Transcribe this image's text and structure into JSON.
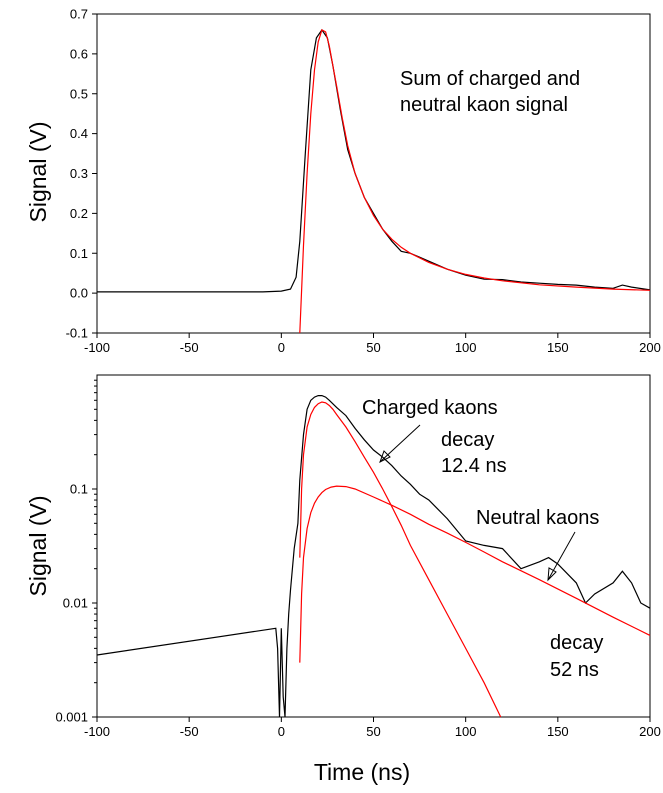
{
  "chart_data": [
    {
      "type": "line",
      "xlabel": "",
      "ylabel": "Signal (V)",
      "xlim": [
        -100,
        200
      ],
      "ylim": [
        -0.1,
        0.7
      ],
      "yscale": "linear",
      "x_ticks": [
        "-100",
        "-50",
        "0",
        "50",
        "100",
        "150",
        "200"
      ],
      "y_ticks": [
        "-0.1",
        "0.0",
        "0.1",
        "0.2",
        "0.3",
        "0.4",
        "0.5",
        "0.6",
        "0.7"
      ],
      "annotations": [
        "Sum of charged and",
        "neutral kaon signal"
      ],
      "series": [
        {
          "color": "#000000",
          "x": [
            -100,
            -50,
            -10,
            0,
            5,
            8,
            10,
            13,
            16,
            19,
            22,
            25,
            28,
            32,
            36,
            40,
            45,
            50,
            55,
            60,
            65,
            70,
            75,
            80,
            90,
            100,
            110,
            120,
            130,
            140,
            150,
            160,
            170,
            180,
            185,
            190,
            200
          ],
          "y": [
            0.003,
            0.003,
            0.003,
            0.005,
            0.01,
            0.04,
            0.13,
            0.35,
            0.56,
            0.64,
            0.66,
            0.64,
            0.57,
            0.46,
            0.36,
            0.3,
            0.24,
            0.2,
            0.16,
            0.13,
            0.105,
            0.1,
            0.09,
            0.08,
            0.06,
            0.045,
            0.035,
            0.034,
            0.028,
            0.025,
            0.022,
            0.02,
            0.015,
            0.012,
            0.02,
            0.015,
            0.008
          ]
        },
        {
          "color": "#ff0000",
          "x": [
            10,
            12,
            14,
            16,
            18,
            20,
            22,
            24,
            26,
            28,
            30,
            33,
            36,
            40,
            45,
            50,
            55,
            60,
            65,
            70,
            80,
            90,
            100,
            110,
            120,
            140,
            160,
            180,
            200
          ],
          "y": [
            -0.1,
            0.12,
            0.3,
            0.45,
            0.56,
            0.63,
            0.66,
            0.655,
            0.62,
            0.57,
            0.52,
            0.44,
            0.37,
            0.3,
            0.24,
            0.195,
            0.16,
            0.135,
            0.115,
            0.1,
            0.077,
            0.06,
            0.047,
            0.038,
            0.031,
            0.021,
            0.015,
            0.01,
            0.007
          ]
        }
      ]
    },
    {
      "type": "line",
      "xlabel": "Time (ns)",
      "ylabel": "Signal (V)",
      "xlim": [
        -100,
        200
      ],
      "ylim": [
        0.001,
        1.0
      ],
      "yscale": "log",
      "x_ticks": [
        "-100",
        "-50",
        "0",
        "50",
        "100",
        "150",
        "200"
      ],
      "y_ticks": [
        "0.001",
        "0.01",
        "0.1"
      ],
      "y_tick_values": [
        0.001,
        0.01,
        0.1
      ],
      "annotations": [
        "Charged kaons",
        "decay",
        "12.4 ns",
        "Neutral kaons",
        "decay",
        "52 ns"
      ],
      "series": [
        {
          "color": "#000000",
          "x": [
            -100,
            -3,
            -2,
            -1,
            0,
            1,
            2,
            3,
            4,
            5,
            7,
            9,
            10,
            12,
            14,
            16,
            18,
            20,
            22,
            24,
            26,
            30,
            35,
            40,
            45,
            50,
            55,
            60,
            65,
            70,
            75,
            80,
            90,
            100,
            110,
            120,
            130,
            140,
            145,
            150,
            160,
            165,
            170,
            180,
            185,
            190,
            195,
            200
          ],
          "y": [
            0.0035,
            0.006,
            0.004,
            0.001,
            0.006,
            0.0015,
            0.001,
            0.004,
            0.008,
            0.013,
            0.03,
            0.05,
            0.12,
            0.3,
            0.5,
            0.6,
            0.64,
            0.66,
            0.66,
            0.64,
            0.6,
            0.52,
            0.44,
            0.34,
            0.27,
            0.22,
            0.19,
            0.16,
            0.13,
            0.11,
            0.09,
            0.08,
            0.055,
            0.035,
            0.032,
            0.03,
            0.02,
            0.023,
            0.025,
            0.022,
            0.015,
            0.01,
            0.012,
            0.015,
            0.019,
            0.015,
            0.01,
            0.009
          ]
        },
        {
          "color": "#ff0000",
          "x": [
            10,
            11,
            12,
            14,
            16,
            18,
            20,
            22,
            24,
            26,
            28,
            30,
            35,
            40,
            45,
            50,
            55,
            60,
            65,
            70,
            80,
            90,
            100,
            110,
            119
          ],
          "y": [
            0.025,
            0.1,
            0.2,
            0.35,
            0.45,
            0.52,
            0.56,
            0.58,
            0.57,
            0.54,
            0.5,
            0.45,
            0.35,
            0.26,
            0.19,
            0.14,
            0.1,
            0.07,
            0.048,
            0.032,
            0.016,
            0.008,
            0.004,
            0.002,
            0.001
          ]
        },
        {
          "color": "#ff0000",
          "x": [
            10,
            11,
            12,
            14,
            16,
            18,
            20,
            22,
            24,
            27,
            30,
            35,
            40,
            50,
            60,
            70,
            80,
            90,
            100,
            110,
            120,
            140,
            160,
            180,
            200
          ],
          "y": [
            0.003,
            0.012,
            0.025,
            0.045,
            0.062,
            0.075,
            0.085,
            0.093,
            0.099,
            0.104,
            0.106,
            0.105,
            0.1,
            0.085,
            0.072,
            0.06,
            0.049,
            0.041,
            0.034,
            0.028,
            0.023,
            0.016,
            0.011,
            0.0075,
            0.0052
          ]
        }
      ]
    }
  ]
}
